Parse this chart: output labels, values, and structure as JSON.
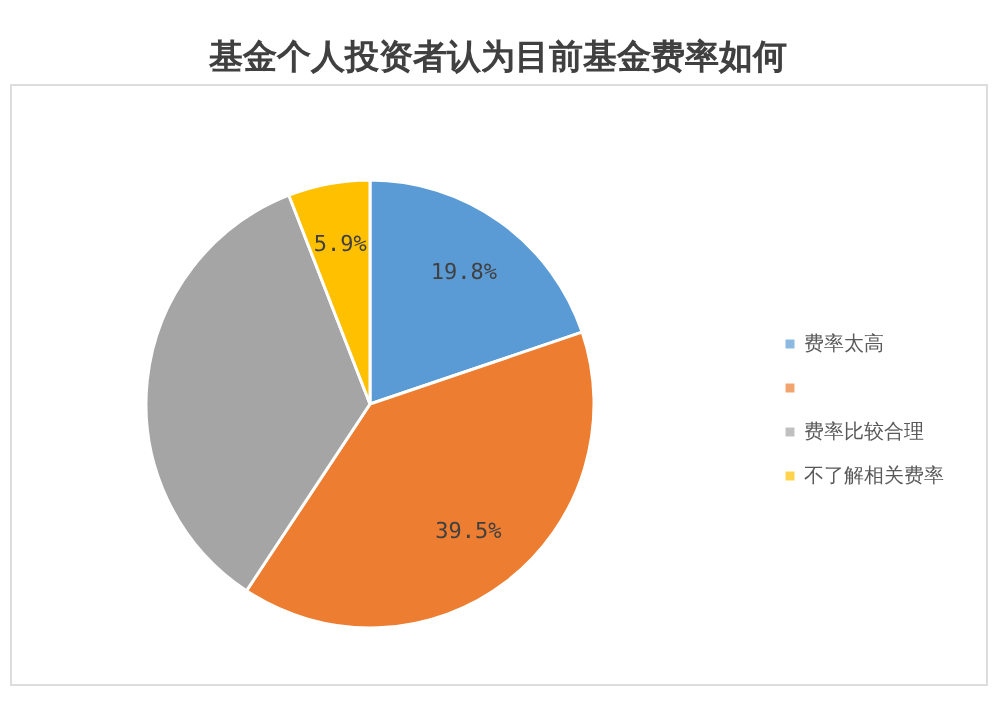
{
  "chart_data": {
    "type": "pie",
    "title": "基金个人投资者认为目前基金费率如何",
    "categories": [
      "费率太高",
      null,
      "费率比较合理",
      "不了解相关费率"
    ],
    "values": [
      19.8,
      39.5,
      34.8,
      5.9
    ],
    "colors": [
      "#5b9bd5",
      "#ed7d31",
      "#a5a5a5",
      "#ffc000"
    ],
    "value_labels": [
      "19.8%",
      "39.5%",
      null,
      "5.9%"
    ],
    "legend": "right"
  }
}
